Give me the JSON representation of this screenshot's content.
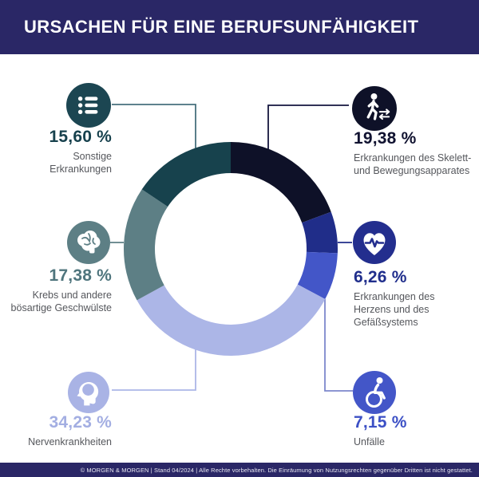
{
  "header": {
    "title": "URSACHEN FÜR EINE BERUFSUNFÄHIGKEIT",
    "bg_color": "#2a2766"
  },
  "chart_data": {
    "type": "pie",
    "subtype": "donut",
    "title": "Ursachen für eine Berufsunfähigkeit",
    "direction": "clockwise",
    "start_angle_deg": 0,
    "legend_position": "around-chart-callouts",
    "categories": [
      "Erkrankungen des Skelett- und Bewegungsapparates",
      "Erkrankungen des Herzens und des Gefäßsystems",
      "Unfälle",
      "Nervenkrankheiten",
      "Krebs und andere bösartige Geschwülste",
      "Sonstige Erkrankungen"
    ],
    "values": [
      19.38,
      6.26,
      7.15,
      34.23,
      17.38,
      15.6
    ],
    "segments": [
      {
        "label": "Erkrankungen des Skelett- und Bewegungsapparates",
        "caption_lines": [
          "Erkrankungen des Skelett-",
          "und Bewegungsapparates"
        ],
        "value": 19.38,
        "pct_label": "19,38 %",
        "color": "#0e1128",
        "icon_bg": "#0e1128",
        "pct_color": "#101230",
        "line_color": "#14163e",
        "icon": "walking-person-icon"
      },
      {
        "label": "Erkrankungen des Herzens und des Gefäßsystems",
        "caption_lines": [
          "Erkrankungen des",
          "Herzens und des",
          "Gefäßsystems"
        ],
        "value": 6.26,
        "pct_label": "6,26 %",
        "color": "#202d89",
        "icon_bg": "#232e8e",
        "pct_color": "#202e8c",
        "line_color": "#202d89",
        "icon": "heart-pulse-icon"
      },
      {
        "label": "Unfälle",
        "caption_lines": [
          "Unfälle"
        ],
        "value": 7.15,
        "pct_label": "7,15 %",
        "color": "#4356c8",
        "icon_bg": "#4356c8",
        "pct_color": "#3c50c5",
        "line_color": "#7d88cc",
        "icon": "wheelchair-icon"
      },
      {
        "label": "Nervenkrankheiten",
        "caption_lines": [
          "Nervenkrankheiten"
        ],
        "value": 34.23,
        "pct_label": "34,23 %",
        "color": "#acb6e7",
        "icon_bg": "#a9b3e5",
        "pct_color": "#a3aee2",
        "line_color": "#acb6e7",
        "icon": "head-profile-icon"
      },
      {
        "label": "Krebs und andere bösartige Geschwülste",
        "caption_lines": [
          "Krebs und andere",
          "bösartige Geschwülste"
        ],
        "value": 17.38,
        "pct_label": "17,38 %",
        "color": "#5d7f85",
        "icon_bg": "#5d7f85",
        "pct_color": "#4f757d",
        "line_color": "#5d7f85",
        "icon": "brain-icon"
      },
      {
        "label": "Sonstige Erkrankungen",
        "caption_lines": [
          "Sonstige",
          "Erkrankungen"
        ],
        "value": 15.6,
        "pct_label": "15,60 %",
        "color": "#17424d",
        "icon_bg": "#1c4652",
        "pct_color": "#17414d",
        "line_color": "#48717d",
        "icon": "list-icon"
      }
    ]
  },
  "footer": {
    "text": "© MORGEN & MORGEN | Stand 04/2024 | Alle Rechte vorbehalten. Die Einräumung von Nutzungsrechten gegenüber Dritten ist nicht gestattet."
  }
}
